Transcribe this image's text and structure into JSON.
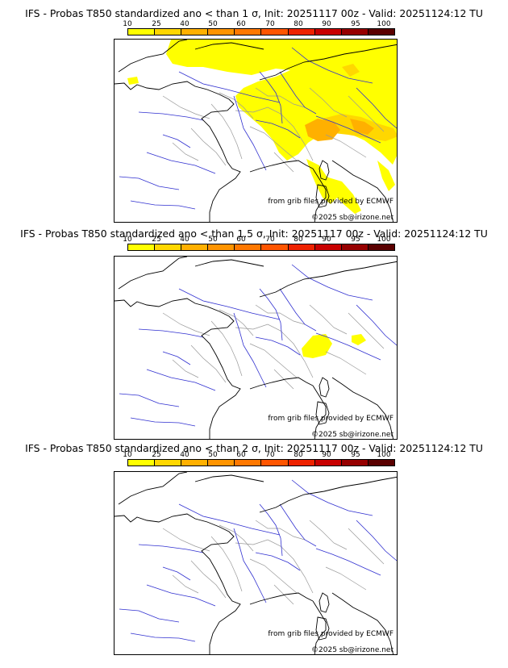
{
  "legend": {
    "labels": [
      "10",
      "25",
      "40",
      "50",
      "60",
      "70",
      "80",
      "90",
      "95",
      "100"
    ],
    "colors": [
      "#ffff00",
      "#ffd700",
      "#ffb000",
      "#ff9400",
      "#ff7800",
      "#ff5500",
      "#ee2200",
      "#c80000",
      "#960000",
      "#5a0000"
    ]
  },
  "credits": {
    "source": "from grib files provided by ECMWF",
    "copyright": "©2025 sb@irizone.net"
  },
  "panels": [
    {
      "title": "IFS - Probas T850  standardized ano < than 1 σ, Init: 20251117 00z - Valid: 20251124:12 TU",
      "coverage": "wide"
    },
    {
      "title": "IFS - Probas T850  standardized ano < than 1.5 σ, Init: 20251117 00z - Valid: 20251124:12 TU",
      "coverage": "small"
    },
    {
      "title": "IFS - Probas T850  standardized ano < than 2 σ, Init: 20251117 00z - Valid: 20251124:12 TU",
      "coverage": "none"
    }
  ],
  "colors": {
    "coast": "#000000",
    "rivers": "#3030d0",
    "borders": "#999999"
  }
}
